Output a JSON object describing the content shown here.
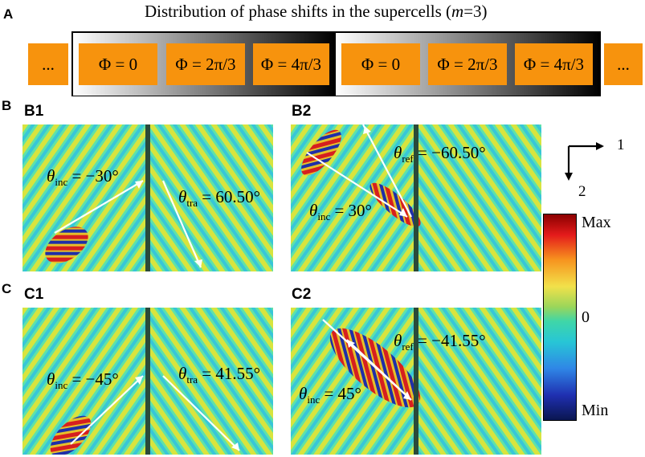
{
  "panel_a": {
    "label": "A",
    "title_prefix": "Distribution of phase shifts in the supercells (",
    "title_var": "m",
    "title_suffix": "=3)",
    "cells": [
      "...",
      "Φ = 0",
      "Φ = 2π/3",
      "Φ = 4π/3",
      "Φ = 0",
      "Φ = 2π/3",
      "Φ = 4π/3",
      "..."
    ],
    "cell_color": "#f7930d"
  },
  "panel_b": {
    "label": "B"
  },
  "panel_c": {
    "label": "C"
  },
  "subpanels": {
    "b1": {
      "label": "B1",
      "ann1_sym": "θ",
      "ann1_sub": "inc",
      "ann1_val": " = −30°",
      "ann2_sym": "θ",
      "ann2_sub": "tra",
      "ann2_val": " = 60.50°"
    },
    "b2": {
      "label": "B2",
      "ann1_sym": "θ",
      "ann1_sub": "ref",
      "ann1_val": " = −60.50°",
      "ann2_sym": "θ",
      "ann2_sub": "inc",
      "ann2_val": " = 30°"
    },
    "c1": {
      "label": "C1",
      "ann1_sym": "θ",
      "ann1_sub": "inc",
      "ann1_val": " = −45°",
      "ann2_sym": "θ",
      "ann2_sub": "tra",
      "ann2_val": " = 41.55°"
    },
    "c2": {
      "label": "C2",
      "ann1_sym": "θ",
      "ann1_sub": "ref",
      "ann1_val": " = −41.55°",
      "ann2_sym": "θ",
      "ann2_sub": "inc",
      "ann2_val": " = 45°"
    }
  },
  "axes": {
    "x_label": "1",
    "y_label": "2"
  },
  "colorbar": {
    "max_label": "Max",
    "zero_label": "0",
    "min_label": "Min"
  },
  "colors": {
    "field_bg": "#5fe2a8",
    "positive": "#d61f1f",
    "negative": "#1f2fa8",
    "highlight": "#e6e03a"
  }
}
